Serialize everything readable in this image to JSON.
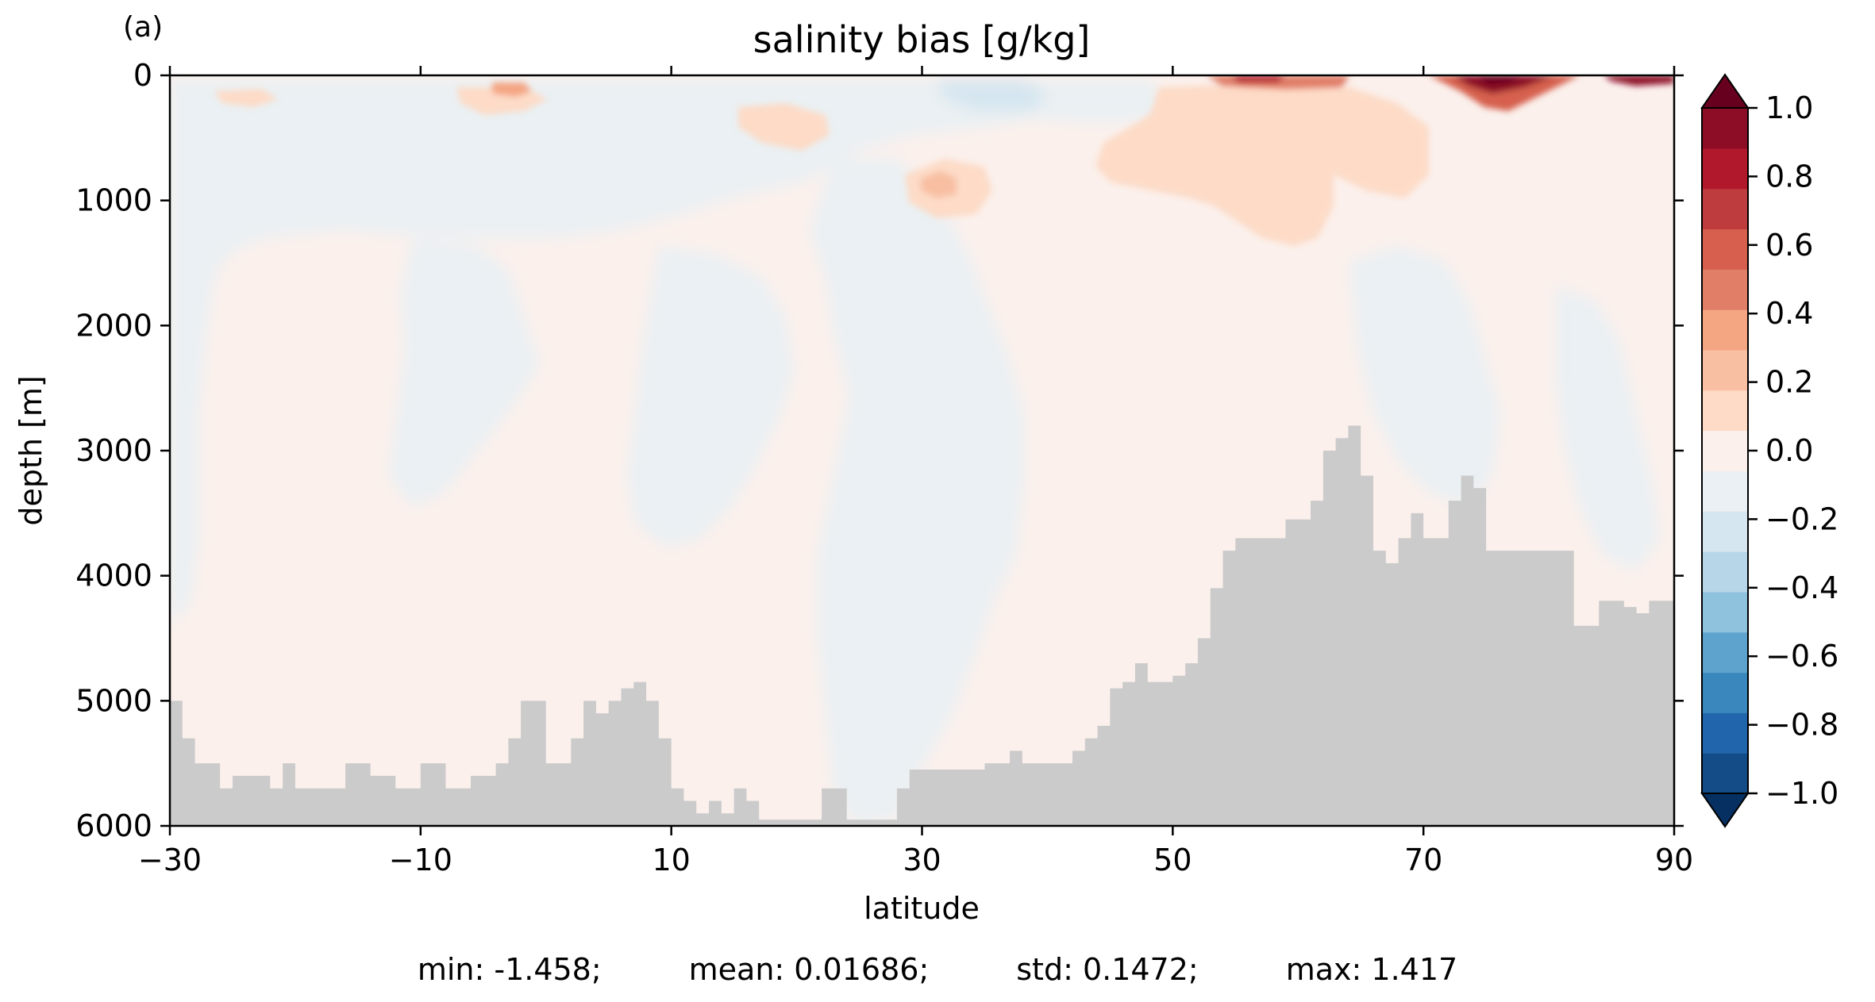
{
  "chart_data": {
    "type": "heatmap",
    "panel_label": "(a)",
    "title": "salinity bias [g/kg]",
    "xlabel": "latitude",
    "ylabel": "depth [m]",
    "xlim": [
      -30,
      90
    ],
    "ylim": [
      6000,
      0
    ],
    "x_ticks": [
      -30,
      -10,
      10,
      30,
      50,
      70,
      90
    ],
    "x_tick_labels": [
      "−30",
      "−10",
      "10",
      "30",
      "50",
      "70",
      "90"
    ],
    "y_ticks": [
      0,
      1000,
      2000,
      3000,
      4000,
      5000,
      6000
    ],
    "y_tick_labels": [
      "0",
      "1000",
      "2000",
      "3000",
      "4000",
      "5000",
      "6000"
    ],
    "colorbar": {
      "colormap": "RdBu_r",
      "vmin": -1.0,
      "vmax": 1.0,
      "levels": 20,
      "extend": "both",
      "ticks": [
        1.0,
        0.8,
        0.6,
        0.4,
        0.2,
        0.0,
        -0.2,
        -0.4,
        -0.6,
        -0.8,
        -1.0
      ],
      "tick_labels": [
        "1.0",
        "0.8",
        "0.6",
        "0.4",
        "0.2",
        "0.0",
        "−0.2",
        "−0.4",
        "−0.6",
        "−0.8",
        "−1.0"
      ],
      "colors": [
        "#053061",
        "#134c87",
        "#2166ac",
        "#3a87bd",
        "#5ea3cd",
        "#8fc2dd",
        "#b7d7e8",
        "#d6e6f0",
        "#eaf0f3",
        "#fbf0ec",
        "#fddbc7",
        "#f8bfa3",
        "#f4a582",
        "#e07e68",
        "#d6604d",
        "#be3c3e",
        "#b2182b",
        "#8c0d25",
        "#67001f"
      ]
    },
    "mask_color": "#cbcbcb",
    "bathymetry": {
      "lat": [
        -30,
        -29,
        -28,
        -26,
        -25,
        -22,
        -21,
        -20,
        -18,
        -16,
        -14,
        -12,
        -10,
        -8,
        -6,
        -4,
        -3,
        -2,
        0,
        2,
        3,
        4,
        5,
        6,
        7,
        8,
        9,
        10,
        11,
        12,
        13,
        14,
        15,
        16,
        17,
        18,
        20,
        22,
        24,
        26,
        28,
        29,
        31,
        33,
        35,
        37,
        38,
        40,
        42,
        43,
        44,
        45,
        46,
        47,
        48,
        50,
        51,
        52,
        53,
        54,
        55,
        57,
        59,
        61,
        62,
        63,
        64,
        65,
        66,
        67,
        68,
        69,
        70,
        71,
        72,
        73,
        74,
        75,
        76,
        78,
        80,
        81,
        82,
        84,
        86,
        87,
        88,
        89,
        90
      ],
      "depth": [
        5000,
        5300,
        5500,
        5700,
        5600,
        5700,
        5500,
        5700,
        5700,
        5500,
        5600,
        5700,
        5500,
        5700,
        5600,
        5500,
        5300,
        5000,
        5500,
        5300,
        5000,
        5100,
        5000,
        4900,
        4850,
        5000,
        5300,
        5700,
        5800,
        5900,
        5800,
        5900,
        5700,
        5800,
        5950,
        5950,
        5950,
        5700,
        5950,
        5950,
        5700,
        5550,
        5550,
        5550,
        5500,
        5400,
        5500,
        5500,
        5400,
        5300,
        5200,
        4900,
        4850,
        4700,
        4850,
        4800,
        4700,
        4500,
        4100,
        3800,
        3700,
        3700,
        3550,
        3400,
        3000,
        2900,
        2800,
        3200,
        3800,
        3900,
        3700,
        3500,
        3700,
        3700,
        3400,
        3200,
        3300,
        3800,
        3800,
        3800,
        3800,
        3800,
        4400,
        4200,
        4250,
        4300,
        4200,
        4200,
        4200
      ]
    },
    "stats": {
      "min": "min: -1.458;",
      "mean": "mean: 0.01686;",
      "std": "std: 0.1472;",
      "max": "max: 1.417"
    }
  }
}
